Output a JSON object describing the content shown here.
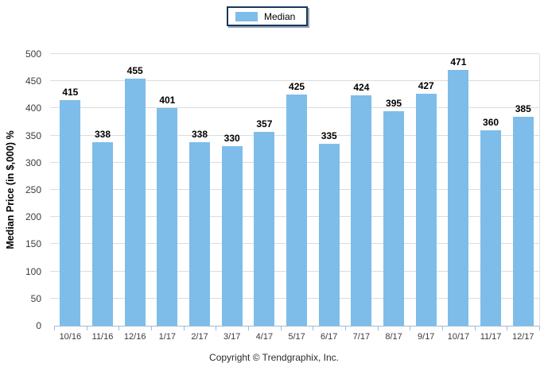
{
  "legend": {
    "label": "Median",
    "swatch_color": "#7EBDEA",
    "border_color": "#17375E"
  },
  "footer": {
    "copyright": "Copyright © Trendgraphix, Inc."
  },
  "colors": {
    "bar": "#7EBDEA",
    "gridline": "#DCDCDC",
    "axis_line": "#9FBCD6",
    "value_label_text": "#000000",
    "tick_label_text": "#3C3C3C"
  },
  "chart_data": {
    "type": "bar",
    "title": "",
    "xlabel": "",
    "ylabel": "Median Price (in $,000) %",
    "categories": [
      "10/16",
      "11/16",
      "12/16",
      "1/17",
      "2/17",
      "3/17",
      "4/17",
      "5/17",
      "6/17",
      "7/17",
      "8/17",
      "9/17",
      "10/17",
      "11/17",
      "12/17"
    ],
    "series": [
      {
        "name": "Median",
        "color": "#7EBDEA",
        "values": [
          415,
          338,
          455,
          401,
          338,
          330,
          357,
          425,
          335,
          424,
          395,
          427,
          471,
          360,
          385
        ]
      }
    ],
    "value_labels": true,
    "ylim": [
      0,
      500
    ],
    "yticks": [
      0,
      50,
      100,
      150,
      200,
      250,
      300,
      350,
      400,
      450,
      500
    ],
    "grid": "horizontal",
    "legend_position": "top-center"
  }
}
